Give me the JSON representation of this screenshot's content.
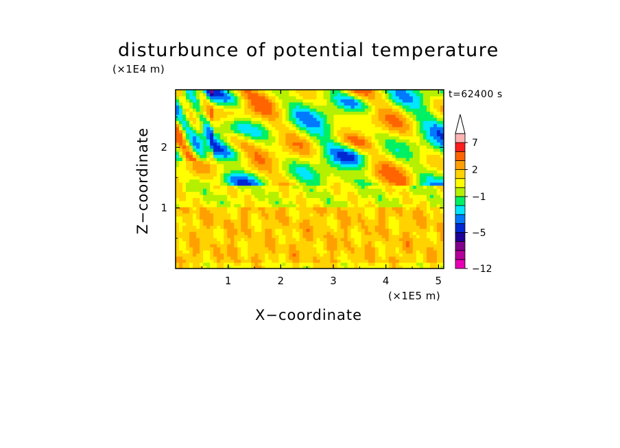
{
  "chart_data": {
    "type": "heatmap",
    "title": "disturbunce of potential temperature",
    "xlabel": "X−coordinate",
    "ylabel": "Z−coordinate",
    "x_unit_label": "(×1E5 m)",
    "y_unit_label": "(×1E4 m)",
    "annotation": "t=62400 s",
    "xlim": [
      0,
      5.1
    ],
    "ylim": [
      0,
      2.95
    ],
    "x_ticks": [
      "1",
      "2",
      "3",
      "4",
      "5"
    ],
    "y_ticks": [
      "1",
      "2"
    ],
    "colorbar": {
      "levels": [
        -12,
        -10,
        -8,
        -6,
        -5,
        -4,
        -3,
        -2,
        -1,
        0,
        1,
        2,
        3,
        5,
        7,
        9
      ],
      "labels": [
        "−12",
        "−5",
        "−1",
        "2",
        "7"
      ],
      "colors": [
        "#e600b4",
        "#b4009b",
        "#82008c",
        "#1e0096",
        "#0028d2",
        "#0078ff",
        "#00e6ff",
        "#00f064",
        "#b4f000",
        "#ffff00",
        "#ffd200",
        "#ffa000",
        "#ff6400",
        "#ff1e1e",
        "#ffb4b4"
      ],
      "extend": "max"
    },
    "z_description_rows": [
      {
        "z_range": [
          0,
          1.0
        ],
        "dominant_values": [
          1,
          3
        ]
      },
      {
        "z_range": [
          1.0,
          1.4
        ],
        "dominant_values": [
          -1,
          1
        ]
      },
      {
        "z_range": [
          1.4,
          2.95
        ],
        "dominant_values": [
          -5,
          5
        ]
      }
    ]
  },
  "colors": {
    "background": "#ffffff",
    "frame": "#000000"
  }
}
